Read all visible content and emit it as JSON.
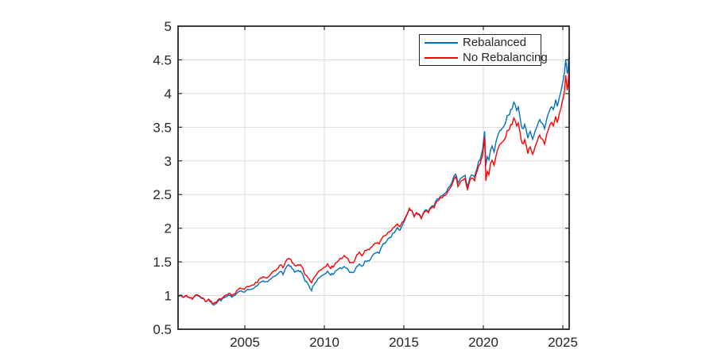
{
  "window": {
    "background": "#ffffff"
  },
  "chart_data": {
    "type": "line",
    "title": "",
    "xlabel": "",
    "ylabel": "",
    "xlim": [
      2000.8,
      2025.4
    ],
    "ylim": [
      0.5,
      5.0
    ],
    "x_ticks": [
      2005,
      2010,
      2015,
      2020,
      2025
    ],
    "y_ticks": [
      0.5,
      1,
      1.5,
      2,
      2.5,
      3,
      3.5,
      4,
      4.5,
      5
    ],
    "grid": true,
    "axis_color": "#262626",
    "grid_color": "#dcdcdc",
    "tick_label_color": "#262626",
    "legend": {
      "position": "top-right-inside",
      "border_color": "#262626",
      "background": "#ffffff"
    },
    "x": [
      2000.8,
      2000.95,
      2001.1,
      2001.25,
      2001.4,
      2001.55,
      2001.7,
      2001.85,
      2002.0,
      2002.15,
      2002.3,
      2002.45,
      2002.6,
      2002.72,
      2002.88,
      2003.05,
      2003.2,
      2003.4,
      2003.6,
      2003.8,
      2004.0,
      2004.18,
      2004.38,
      2004.58,
      2004.78,
      2004.98,
      2005.18,
      2005.38,
      2005.58,
      2005.78,
      2005.98,
      2006.15,
      2006.35,
      2006.55,
      2006.75,
      2006.95,
      2007.1,
      2007.25,
      2007.4,
      2007.55,
      2007.75,
      2007.9,
      2008.05,
      2008.2,
      2008.35,
      2008.5,
      2008.65,
      2008.8,
      2008.95,
      2009.1,
      2009.2,
      2009.35,
      2009.5,
      2009.65,
      2009.8,
      2010.0,
      2010.2,
      2010.4,
      2010.55,
      2010.7,
      2010.9,
      2011.1,
      2011.25,
      2011.45,
      2011.6,
      2011.75,
      2011.9,
      2012.05,
      2012.2,
      2012.35,
      2012.55,
      2012.75,
      2012.9,
      2013.1,
      2013.3,
      2013.45,
      2013.62,
      2013.8,
      2014.0,
      2014.2,
      2014.4,
      2014.6,
      2014.75,
      2014.9,
      2015.05,
      2015.2,
      2015.35,
      2015.5,
      2015.65,
      2015.8,
      2015.95,
      2016.1,
      2016.3,
      2016.45,
      2016.55,
      2016.7,
      2016.9,
      2017.1,
      2017.3,
      2017.6,
      2017.9,
      2018.1,
      2018.25,
      2018.4,
      2018.55,
      2018.7,
      2018.85,
      2019.0,
      2019.15,
      2019.35,
      2019.45,
      2019.6,
      2019.8,
      2019.95,
      2020.08,
      2020.16,
      2020.25,
      2020.35,
      2020.45,
      2020.55,
      2020.68,
      2020.8,
      2020.95,
      2021.1,
      2021.25,
      2021.35,
      2021.5,
      2021.65,
      2021.8,
      2021.92,
      2022.0,
      2022.1,
      2022.2,
      2022.3,
      2022.45,
      2022.6,
      2022.8,
      2022.95,
      2023.1,
      2023.25,
      2023.4,
      2023.55,
      2023.7,
      2023.85,
      2024.0,
      2024.15,
      2024.3,
      2024.4,
      2024.55,
      2024.65,
      2024.8,
      2024.95,
      2025.1,
      2025.18,
      2025.28,
      2025.33,
      2025.38,
      2025.4
    ],
    "series": [
      {
        "name": "Rebalanced",
        "color": "#0072BD",
        "values": [
          1.0,
          1.004,
          0.988,
          1.0,
          0.985,
          0.966,
          0.946,
          0.992,
          1.0,
          0.988,
          0.962,
          0.94,
          0.912,
          0.932,
          0.898,
          0.858,
          0.888,
          0.922,
          0.952,
          0.982,
          1.008,
          0.99,
          1.012,
          1.055,
          1.065,
          1.058,
          1.08,
          1.096,
          1.116,
          1.146,
          1.194,
          1.228,
          1.2,
          1.238,
          1.27,
          1.3,
          1.325,
          1.352,
          1.33,
          1.398,
          1.462,
          1.42,
          1.372,
          1.34,
          1.382,
          1.36,
          1.32,
          1.218,
          1.178,
          1.118,
          1.082,
          1.168,
          1.218,
          1.258,
          1.288,
          1.318,
          1.358,
          1.302,
          1.33,
          1.36,
          1.392,
          1.412,
          1.432,
          1.402,
          1.352,
          1.33,
          1.372,
          1.428,
          1.458,
          1.428,
          1.498,
          1.518,
          1.54,
          1.618,
          1.655,
          1.622,
          1.742,
          1.778,
          1.848,
          1.878,
          1.938,
          2.0,
          1.968,
          2.048,
          2.12,
          2.198,
          2.292,
          2.248,
          2.172,
          2.238,
          2.21,
          2.162,
          2.242,
          2.278,
          2.24,
          2.312,
          2.345,
          2.438,
          2.468,
          2.538,
          2.625,
          2.738,
          2.82,
          2.665,
          2.718,
          2.762,
          2.8,
          2.602,
          2.742,
          2.802,
          2.752,
          2.902,
          3.02,
          3.178,
          3.42,
          2.92,
          3.08,
          3.02,
          3.148,
          3.202,
          3.148,
          3.275,
          3.398,
          3.468,
          3.512,
          3.558,
          3.648,
          3.712,
          3.78,
          3.898,
          3.82,
          3.738,
          3.795,
          3.64,
          3.452,
          3.548,
          3.352,
          3.452,
          3.332,
          3.428,
          3.542,
          3.612,
          3.548,
          3.482,
          3.652,
          3.742,
          3.822,
          3.762,
          3.902,
          3.818,
          3.985,
          4.118,
          4.292,
          4.468,
          4.272,
          4.352,
          4.552,
          4.735
        ]
      },
      {
        "name": "No Rebalancing",
        "color": "#FF0000",
        "values": [
          1.0,
          1.004,
          0.988,
          1.0,
          0.985,
          0.966,
          0.948,
          0.994,
          1.002,
          0.99,
          0.966,
          0.945,
          0.918,
          0.938,
          0.906,
          0.876,
          0.904,
          0.938,
          0.968,
          1.0,
          1.03,
          1.014,
          1.04,
          1.09,
          1.106,
          1.102,
          1.126,
          1.146,
          1.17,
          1.202,
          1.256,
          1.29,
          1.262,
          1.305,
          1.342,
          1.38,
          1.412,
          1.445,
          1.42,
          1.497,
          1.565,
          1.52,
          1.465,
          1.43,
          1.472,
          1.45,
          1.408,
          1.308,
          1.275,
          1.228,
          1.198,
          1.272,
          1.315,
          1.36,
          1.392,
          1.422,
          1.462,
          1.408,
          1.438,
          1.47,
          1.522,
          1.565,
          1.588,
          1.555,
          1.498,
          1.472,
          1.52,
          1.598,
          1.628,
          1.595,
          1.662,
          1.682,
          1.7,
          1.762,
          1.798,
          1.762,
          1.852,
          1.888,
          1.94,
          1.968,
          2.02,
          2.058,
          2.022,
          2.09,
          2.14,
          2.208,
          2.298,
          2.255,
          2.18,
          2.24,
          2.205,
          2.152,
          2.23,
          2.262,
          2.225,
          2.295,
          2.325,
          2.412,
          2.44,
          2.505,
          2.588,
          2.698,
          2.775,
          2.622,
          2.672,
          2.715,
          2.752,
          2.558,
          2.695,
          2.752,
          2.705,
          2.848,
          2.952,
          3.098,
          3.33,
          2.68,
          2.862,
          2.8,
          2.942,
          2.995,
          2.945,
          3.068,
          3.188,
          3.262,
          3.308,
          3.345,
          3.428,
          3.488,
          3.548,
          3.662,
          3.585,
          3.512,
          3.562,
          3.42,
          3.24,
          3.33,
          3.122,
          3.222,
          3.105,
          3.202,
          3.312,
          3.378,
          3.318,
          3.255,
          3.418,
          3.505,
          3.582,
          3.525,
          3.655,
          3.578,
          3.738,
          3.862,
          4.025,
          4.252,
          4.032,
          4.135,
          4.315,
          4.475
        ]
      }
    ]
  }
}
